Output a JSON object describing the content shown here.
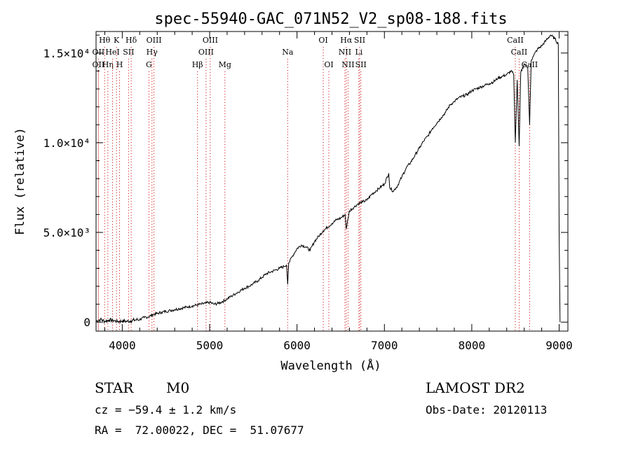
{
  "chart_data": {
    "type": "line",
    "title": "spec-55940-GAC_071N52_V2_sp08-188.fits",
    "xlabel": "Wavelength (Å)",
    "ylabel": "Flux (relative)",
    "xlim": [
      3700,
      9100
    ],
    "ylim": [
      -500,
      16200
    ],
    "grid": false,
    "xticks": [
      4000,
      5000,
      6000,
      7000,
      8000,
      9000
    ],
    "xtick_labels": [
      "4000",
      "5000",
      "6000",
      "7000",
      "8000",
      "9000"
    ],
    "yticks": [
      0,
      5000,
      10000,
      15000
    ],
    "ytick_labels": [
      "0",
      "5.0×10³",
      "1.0×10⁴",
      "1.5×10⁴"
    ],
    "series": [
      {
        "color": "#000000",
        "x": [
          3700,
          3750,
          3800,
          3850,
          3900,
          3950,
          4000,
          4050,
          4100,
          4150,
          4200,
          4250,
          4300,
          4350,
          4400,
          4450,
          4500,
          4550,
          4600,
          4650,
          4700,
          4750,
          4800,
          4850,
          4900,
          4950,
          5000,
          5050,
          5100,
          5150,
          5200,
          5250,
          5300,
          5350,
          5400,
          5450,
          5500,
          5550,
          5600,
          5650,
          5700,
          5750,
          5800,
          5850,
          5880,
          5893,
          5905,
          5950,
          6000,
          6050,
          6100,
          6150,
          6200,
          6250,
          6300,
          6350,
          6400,
          6450,
          6500,
          6550,
          6563,
          6600,
          6650,
          6700,
          6750,
          6800,
          6850,
          6900,
          6950,
          7000,
          7050,
          7060,
          7100,
          7150,
          7200,
          7250,
          7300,
          7350,
          7400,
          7450,
          7500,
          7550,
          7600,
          7650,
          7700,
          7750,
          7800,
          7850,
          7900,
          7950,
          8000,
          8050,
          8100,
          8150,
          8200,
          8250,
          8300,
          8350,
          8400,
          8450,
          8480,
          8498,
          8520,
          8542,
          8560,
          8600,
          8640,
          8662,
          8680,
          8700,
          8750,
          8800,
          8850,
          8900,
          8950,
          8990,
          9000,
          9010
        ],
        "y": [
          50,
          150,
          50,
          120,
          90,
          30,
          60,
          40,
          80,
          120,
          150,
          250,
          300,
          420,
          480,
          550,
          600,
          650,
          700,
          750,
          800,
          850,
          900,
          950,
          1000,
          1050,
          1100,
          1000,
          1050,
          1150,
          1300,
          1450,
          1600,
          1750,
          1900,
          2000,
          2150,
          2300,
          2500,
          2700,
          2800,
          2900,
          3000,
          3100,
          3200,
          2100,
          3300,
          3700,
          4100,
          4300,
          4200,
          4000,
          4500,
          4800,
          5100,
          5300,
          5500,
          5700,
          5800,
          6000,
          5200,
          6200,
          6400,
          6600,
          6700,
          6800,
          7100,
          7300,
          7500,
          7700,
          8300,
          7500,
          7300,
          7600,
          8100,
          8600,
          8900,
          9300,
          9700,
          10100,
          10400,
          10800,
          11100,
          11400,
          11700,
          12100,
          12300,
          12500,
          12600,
          12700,
          12900,
          13000,
          13100,
          13200,
          13300,
          13400,
          13600,
          13700,
          13800,
          14000,
          13800,
          10000,
          13500,
          9800,
          13900,
          14400,
          14200,
          11000,
          14600,
          14800,
          15200,
          15400,
          15700,
          16000,
          15800,
          15500,
          5000,
          0
        ]
      }
    ],
    "spectral_lines": [
      {
        "label": "Hθ",
        "x": 3798,
        "row": 0
      },
      {
        "label": "OII",
        "x": 3727,
        "row": 1
      },
      {
        "label": "OII",
        "x": 3727,
        "row": 2
      },
      {
        "label": "Hη",
        "x": 3835,
        "row": 2
      },
      {
        "label": "HeI",
        "x": 3889,
        "row": 1
      },
      {
        "label": "K",
        "x": 3934,
        "row": 0
      },
      {
        "label": "SII",
        "x": 4072,
        "row": 1
      },
      {
        "label": "H",
        "x": 3969,
        "row": 2
      },
      {
        "label": "Hδ",
        "x": 4102,
        "row": 0
      },
      {
        "label": "OIII",
        "x": 4363,
        "row": 0
      },
      {
        "label": "Hγ",
        "x": 4340,
        "row": 1
      },
      {
        "label": "G",
        "x": 4305,
        "row": 2
      },
      {
        "label": "OIII",
        "x": 5007,
        "row": 0
      },
      {
        "label": "OIII",
        "x": 4959,
        "row": 1
      },
      {
        "label": "Hβ",
        "x": 4861,
        "row": 2
      },
      {
        "label": "Mg",
        "x": 5175,
        "row": 2
      },
      {
        "label": "Na",
        "x": 5893,
        "row": 1
      },
      {
        "label": "OI",
        "x": 6300,
        "row": 0
      },
      {
        "label": "OI",
        "x": 6364,
        "row": 2
      },
      {
        "label": "Hα",
        "x": 6563,
        "row": 0
      },
      {
        "label": "SII",
        "x": 6717,
        "row": 0
      },
      {
        "label": "NII",
        "x": 6548,
        "row": 1
      },
      {
        "label": "Li",
        "x": 6708,
        "row": 1
      },
      {
        "label": "NII",
        "x": 6584,
        "row": 2
      },
      {
        "label": "SII",
        "x": 6731,
        "row": 2
      },
      {
        "label": "CaII",
        "x": 8498,
        "row": 0
      },
      {
        "label": "CaII",
        "x": 8542,
        "row": 1
      },
      {
        "label": "CaII",
        "x": 8662,
        "row": 2
      }
    ]
  },
  "info": {
    "object_class": "STAR",
    "subclass": "M0",
    "survey": "LAMOST DR2",
    "velocity": "cz = −59.4 ± 1.2 km/s",
    "obs_date": "Obs-Date: 20120113",
    "coords": "RA =  72.00022, DEC =  51.07677"
  }
}
